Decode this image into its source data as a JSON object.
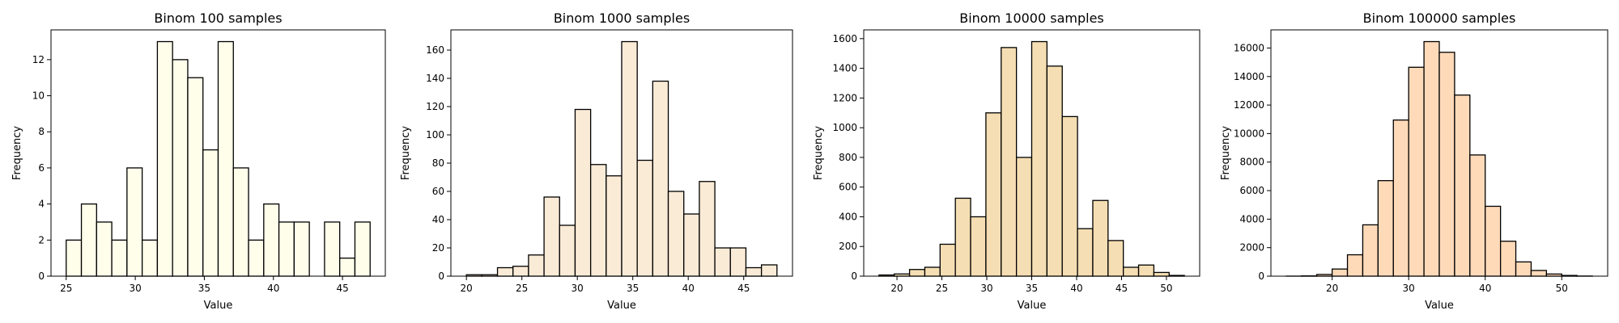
{
  "chart_data": [
    {
      "type": "bar",
      "title": "Binom 100 samples",
      "xlabel": "Value",
      "ylabel": "Frequency",
      "color": "#fffeeb",
      "bin_edges": [
        25,
        26.1,
        27.2,
        28.3,
        29.4,
        30.5,
        31.6,
        32.7,
        33.8,
        34.9,
        36.0,
        37.1,
        38.2,
        39.3,
        40.4,
        41.5,
        42.6,
        43.7,
        44.8,
        45.9,
        47.0
      ],
      "values": [
        2,
        4,
        3,
        2,
        6,
        2,
        13,
        12,
        11,
        7,
        13,
        6,
        2,
        4,
        3,
        3,
        0,
        3,
        1,
        3
      ],
      "xlim": [
        23.9,
        48.1
      ],
      "ylim": [
        0,
        13.65
      ],
      "xticks": [
        25,
        30,
        35,
        40,
        45
      ],
      "yticks": [
        0,
        2,
        4,
        6,
        8,
        10,
        12
      ]
    },
    {
      "type": "bar",
      "title": "Binom 1000 samples",
      "xlabel": "Value",
      "ylabel": "Frequency",
      "color": "#faebd7",
      "bin_edges": [
        20,
        21.4,
        22.8,
        24.2,
        25.6,
        27.0,
        28.4,
        29.8,
        31.2,
        32.6,
        34.0,
        35.4,
        36.8,
        38.2,
        39.6,
        41.0,
        42.4,
        43.8,
        45.2,
        46.6,
        48.0
      ],
      "values": [
        1,
        1,
        6,
        7,
        15,
        56,
        36,
        118,
        79,
        71,
        166,
        82,
        138,
        60,
        44,
        67,
        20,
        20,
        6,
        8
      ],
      "xlim": [
        18.6,
        49.4
      ],
      "ylim": [
        0,
        174.3
      ],
      "xticks": [
        20,
        25,
        30,
        35,
        40,
        45
      ],
      "yticks": [
        0,
        20,
        40,
        60,
        80,
        100,
        120,
        140,
        160
      ]
    },
    {
      "type": "bar",
      "title": "Binom 10000 samples",
      "xlabel": "Value",
      "ylabel": "Frequency",
      "color": "#f5deb3",
      "bin_edges": [
        18,
        19.7,
        21.4,
        23.1,
        24.8,
        26.5,
        28.2,
        29.9,
        31.6,
        33.3,
        35.0,
        36.7,
        38.4,
        40.1,
        41.8,
        43.5,
        45.2,
        46.9,
        48.6,
        50.3,
        52.0
      ],
      "values": [
        8,
        15,
        45,
        60,
        215,
        525,
        400,
        1100,
        1540,
        800,
        1580,
        1415,
        1075,
        320,
        510,
        240,
        60,
        75,
        25,
        5
      ],
      "xlim": [
        16.3,
        53.7
      ],
      "ylim": [
        0,
        1659
      ],
      "xticks": [
        20,
        25,
        30,
        35,
        40,
        45,
        50
      ],
      "yticks": [
        0,
        200,
        400,
        600,
        800,
        1000,
        1200,
        1400,
        1600
      ]
    },
    {
      "type": "bar",
      "title": "Binom 100000 samples",
      "xlabel": "Value",
      "ylabel": "Frequency",
      "color": "#ffdab9",
      "bin_edges": [
        14,
        16.0,
        18.0,
        20.0,
        22.0,
        24.0,
        26.0,
        28.0,
        30.0,
        32.0,
        34.0,
        36.0,
        38.0,
        40.0,
        42.0,
        44.0,
        46.0,
        48.0,
        50.0,
        52.0,
        54.0
      ],
      "values": [
        3,
        20,
        120,
        500,
        1500,
        3600,
        6700,
        10950,
        14650,
        16450,
        15700,
        12700,
        8500,
        4900,
        2450,
        1000,
        400,
        150,
        50,
        10
      ],
      "xlim": [
        12,
        56
      ],
      "ylim": [
        0,
        17272
      ],
      "xticks": [
        20,
        30,
        40,
        50
      ],
      "yticks": [
        0,
        2000,
        4000,
        6000,
        8000,
        10000,
        12000,
        14000,
        16000
      ]
    }
  ]
}
